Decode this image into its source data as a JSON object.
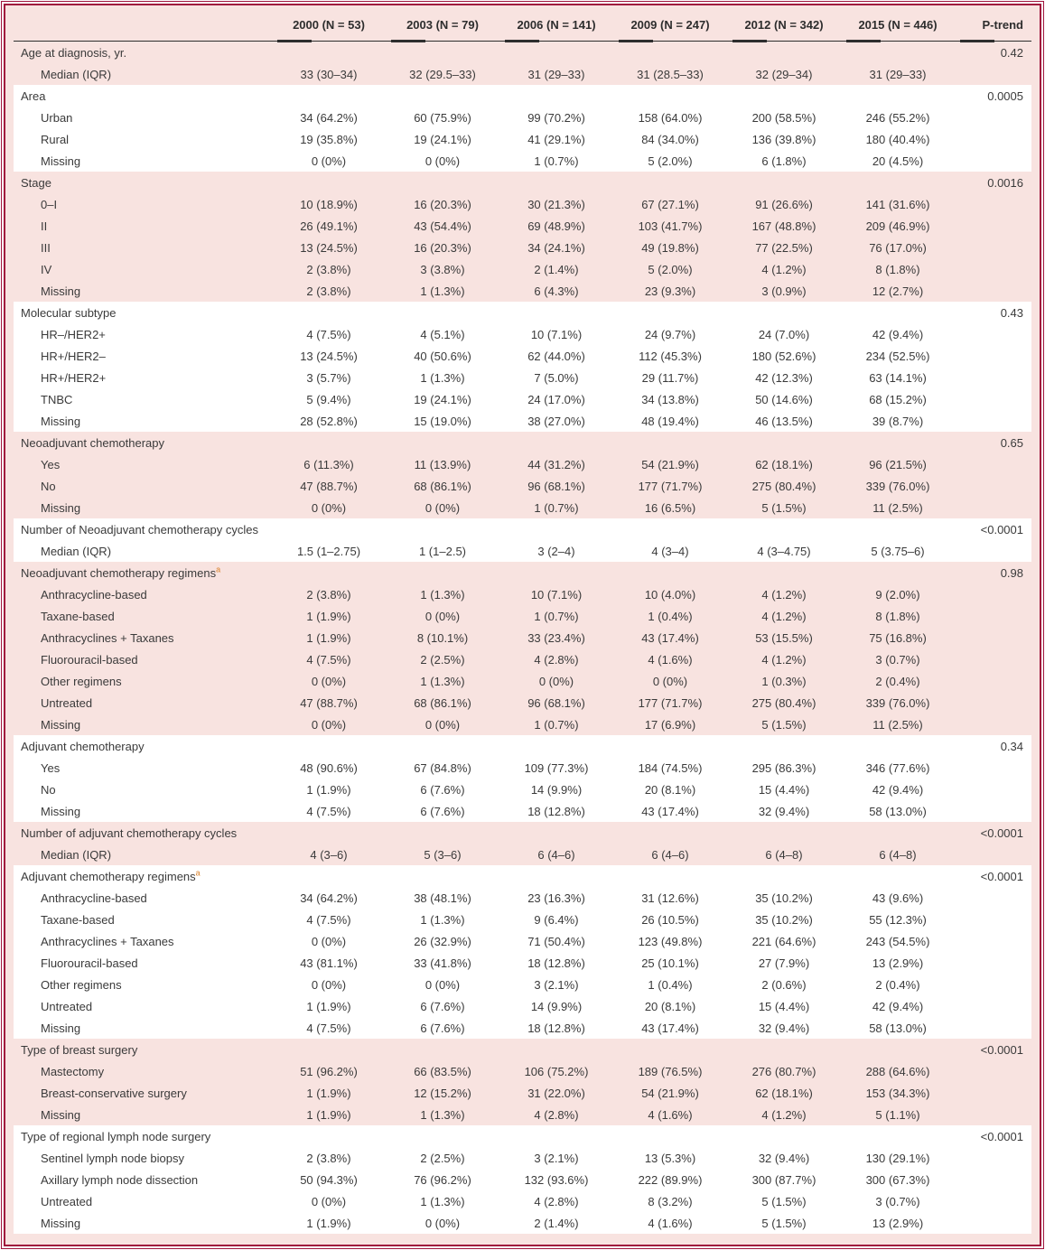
{
  "colors": {
    "maroon": "#a0143c",
    "pink": "#f8e3e0",
    "white": "#ffffff",
    "text": "#3a3a3a",
    "rule": "#2e2e2e",
    "footnote": "#d9822b"
  },
  "table": {
    "label_column": "",
    "columns": [
      "2000 (N = 53)",
      "2003 (N = 79)",
      "2006 (N = 141)",
      "2009 (N = 247)",
      "2012 (N = 342)",
      "2015 (N = 446)"
    ],
    "p_column": "P-trend",
    "sections": [
      {
        "label": "Age at diagnosis, yr.",
        "p": "0.42",
        "rows": [
          {
            "label": "Median (IQR)",
            "values": [
              "33 (30–34)",
              "32 (29.5–33)",
              "31 (29–33)",
              "31 (28.5–33)",
              "32 (29–34)",
              "31 (29–33)"
            ]
          }
        ]
      },
      {
        "label": "Area",
        "p": "0.0005",
        "rows": [
          {
            "label": "Urban",
            "values": [
              "34 (64.2%)",
              "60 (75.9%)",
              "99 (70.2%)",
              "158 (64.0%)",
              "200 (58.5%)",
              "246 (55.2%)"
            ]
          },
          {
            "label": "Rural",
            "values": [
              "19 (35.8%)",
              "19 (24.1%)",
              "41 (29.1%)",
              "84 (34.0%)",
              "136 (39.8%)",
              "180 (40.4%)"
            ]
          },
          {
            "label": "Missing",
            "values": [
              "0 (0%)",
              "0 (0%)",
              "1 (0.7%)",
              "5 (2.0%)",
              "6 (1.8%)",
              "20 (4.5%)"
            ]
          }
        ]
      },
      {
        "label": "Stage",
        "p": "0.0016",
        "rows": [
          {
            "label": "0–I",
            "values": [
              "10 (18.9%)",
              "16 (20.3%)",
              "30 (21.3%)",
              "67 (27.1%)",
              "91 (26.6%)",
              "141 (31.6%)"
            ]
          },
          {
            "label": "II",
            "values": [
              "26 (49.1%)",
              "43 (54.4%)",
              "69 (48.9%)",
              "103 (41.7%)",
              "167 (48.8%)",
              "209 (46.9%)"
            ]
          },
          {
            "label": "III",
            "values": [
              "13 (24.5%)",
              "16 (20.3%)",
              "34 (24.1%)",
              "49 (19.8%)",
              "77 (22.5%)",
              "76 (17.0%)"
            ]
          },
          {
            "label": "IV",
            "values": [
              "2 (3.8%)",
              "3 (3.8%)",
              "2 (1.4%)",
              "5 (2.0%)",
              "4 (1.2%)",
              "8 (1.8%)"
            ]
          },
          {
            "label": "Missing",
            "values": [
              "2 (3.8%)",
              "1 (1.3%)",
              "6 (4.3%)",
              "23 (9.3%)",
              "3 (0.9%)",
              "12 (2.7%)"
            ]
          }
        ]
      },
      {
        "label": "Molecular subtype",
        "p": "0.43",
        "rows": [
          {
            "label": "HR–/HER2+",
            "values": [
              "4 (7.5%)",
              "4 (5.1%)",
              "10 (7.1%)",
              "24 (9.7%)",
              "24 (7.0%)",
              "42 (9.4%)"
            ]
          },
          {
            "label": "HR+/HER2–",
            "values": [
              "13 (24.5%)",
              "40 (50.6%)",
              "62 (44.0%)",
              "112 (45.3%)",
              "180 (52.6%)",
              "234 (52.5%)"
            ]
          },
          {
            "label": "HR+/HER2+",
            "values": [
              "3 (5.7%)",
              "1 (1.3%)",
              "7 (5.0%)",
              "29 (11.7%)",
              "42 (12.3%)",
              "63 (14.1%)"
            ]
          },
          {
            "label": "TNBC",
            "values": [
              "5 (9.4%)",
              "19 (24.1%)",
              "24 (17.0%)",
              "34 (13.8%)",
              "50 (14.6%)",
              "68 (15.2%)"
            ]
          },
          {
            "label": "Missing",
            "values": [
              "28 (52.8%)",
              "15 (19.0%)",
              "38 (27.0%)",
              "48 (19.4%)",
              "46 (13.5%)",
              "39 (8.7%)"
            ]
          }
        ]
      },
      {
        "label": "Neoadjuvant chemotherapy",
        "p": "0.65",
        "rows": [
          {
            "label": "Yes",
            "values": [
              "6 (11.3%)",
              "11 (13.9%)",
              "44 (31.2%)",
              "54 (21.9%)",
              "62 (18.1%)",
              "96 (21.5%)"
            ]
          },
          {
            "label": "No",
            "values": [
              "47 (88.7%)",
              "68 (86.1%)",
              "96 (68.1%)",
              "177 (71.7%)",
              "275 (80.4%)",
              "339 (76.0%)"
            ]
          },
          {
            "label": "Missing",
            "values": [
              "0 (0%)",
              "0 (0%)",
              "1 (0.7%)",
              "16 (6.5%)",
              "5 (1.5%)",
              "11 (2.5%)"
            ]
          }
        ]
      },
      {
        "label": "Number of Neoadjuvant chemotherapy cycles",
        "p": "<0.0001",
        "rows": [
          {
            "label": "Median (IQR)",
            "values": [
              "1.5 (1–2.75)",
              "1 (1–2.5)",
              "3 (2–4)",
              "4 (3–4)",
              "4 (3–4.75)",
              "5 (3.75–6)"
            ]
          }
        ]
      },
      {
        "label": "Neoadjuvant chemotherapy regimens",
        "sup": "a",
        "p": "0.98",
        "rows": [
          {
            "label": "Anthracycline-based",
            "values": [
              "2 (3.8%)",
              "1 (1.3%)",
              "10 (7.1%)",
              "10 (4.0%)",
              "4 (1.2%)",
              "9 (2.0%)"
            ]
          },
          {
            "label": "Taxane-based",
            "values": [
              "1 (1.9%)",
              "0 (0%)",
              "1 (0.7%)",
              "1 (0.4%)",
              "4 (1.2%)",
              "8 (1.8%)"
            ]
          },
          {
            "label": "Anthracyclines + Taxanes",
            "values": [
              "1 (1.9%)",
              "8 (10.1%)",
              "33 (23.4%)",
              "43 (17.4%)",
              "53 (15.5%)",
              "75 (16.8%)"
            ]
          },
          {
            "label": "Fluorouracil-based",
            "values": [
              "4 (7.5%)",
              "2 (2.5%)",
              "4 (2.8%)",
              "4 (1.6%)",
              "4 (1.2%)",
              "3 (0.7%)"
            ]
          },
          {
            "label": "Other regimens",
            "values": [
              "0 (0%)",
              "1 (1.3%)",
              "0 (0%)",
              "0 (0%)",
              "1 (0.3%)",
              "2 (0.4%)"
            ]
          },
          {
            "label": "Untreated",
            "values": [
              "47 (88.7%)",
              "68 (86.1%)",
              "96 (68.1%)",
              "177 (71.7%)",
              "275 (80.4%)",
              "339 (76.0%)"
            ]
          },
          {
            "label": "Missing",
            "values": [
              "0 (0%)",
              "0 (0%)",
              "1 (0.7%)",
              "17 (6.9%)",
              "5 (1.5%)",
              "11 (2.5%)"
            ]
          }
        ]
      },
      {
        "label": "Adjuvant chemotherapy",
        "p": "0.34",
        "rows": [
          {
            "label": "Yes",
            "values": [
              "48 (90.6%)",
              "67 (84.8%)",
              "109 (77.3%)",
              "184 (74.5%)",
              "295 (86.3%)",
              "346 (77.6%)"
            ]
          },
          {
            "label": "No",
            "values": [
              "1 (1.9%)",
              "6 (7.6%)",
              "14 (9.9%)",
              "20 (8.1%)",
              "15 (4.4%)",
              "42 (9.4%)"
            ]
          },
          {
            "label": "Missing",
            "values": [
              "4 (7.5%)",
              "6 (7.6%)",
              "18 (12.8%)",
              "43 (17.4%)",
              "32 (9.4%)",
              "58 (13.0%)"
            ]
          }
        ]
      },
      {
        "label": "Number of adjuvant chemotherapy cycles",
        "p": "<0.0001",
        "rows": [
          {
            "label": "Median (IQR)",
            "values": [
              "4 (3–6)",
              "5 (3–6)",
              "6 (4–6)",
              "6 (4–6)",
              "6 (4–8)",
              "6 (4–8)"
            ]
          }
        ]
      },
      {
        "label": "Adjuvant chemotherapy regimens",
        "sup": "a",
        "p": "<0.0001",
        "rows": [
          {
            "label": "Anthracycline-based",
            "values": [
              "34 (64.2%)",
              "38 (48.1%)",
              "23 (16.3%)",
              "31 (12.6%)",
              "35 (10.2%)",
              "43 (9.6%)"
            ]
          },
          {
            "label": "Taxane-based",
            "values": [
              "4 (7.5%)",
              "1 (1.3%)",
              "9 (6.4%)",
              "26 (10.5%)",
              "35 (10.2%)",
              "55 (12.3%)"
            ]
          },
          {
            "label": "Anthracyclines + Taxanes",
            "values": [
              "0 (0%)",
              "26 (32.9%)",
              "71 (50.4%)",
              "123 (49.8%)",
              "221 (64.6%)",
              "243 (54.5%)"
            ]
          },
          {
            "label": "Fluorouracil-based",
            "values": [
              "43 (81.1%)",
              "33 (41.8%)",
              "18 (12.8%)",
              "25 (10.1%)",
              "27 (7.9%)",
              "13 (2.9%)"
            ]
          },
          {
            "label": "Other regimens",
            "values": [
              "0 (0%)",
              "0 (0%)",
              "3 (2.1%)",
              "1 (0.4%)",
              "2 (0.6%)",
              "2 (0.4%)"
            ]
          },
          {
            "label": "Untreated",
            "values": [
              "1 (1.9%)",
              "6 (7.6%)",
              "14 (9.9%)",
              "20 (8.1%)",
              "15 (4.4%)",
              "42 (9.4%)"
            ]
          },
          {
            "label": "Missing",
            "values": [
              "4 (7.5%)",
              "6 (7.6%)",
              "18 (12.8%)",
              "43 (17.4%)",
              "32 (9.4%)",
              "58 (13.0%)"
            ]
          }
        ]
      },
      {
        "label": "Type of breast surgery",
        "p": "<0.0001",
        "rows": [
          {
            "label": "Mastectomy",
            "values": [
              "51 (96.2%)",
              "66 (83.5%)",
              "106 (75.2%)",
              "189 (76.5%)",
              "276 (80.7%)",
              "288 (64.6%)"
            ]
          },
          {
            "label": "Breast-conservative surgery",
            "values": [
              "1 (1.9%)",
              "12 (15.2%)",
              "31 (22.0%)",
              "54 (21.9%)",
              "62 (18.1%)",
              "153 (34.3%)"
            ]
          },
          {
            "label": "Missing",
            "values": [
              "1 (1.9%)",
              "1 (1.3%)",
              "4 (2.8%)",
              "4 (1.6%)",
              "4 (1.2%)",
              "5 (1.1%)"
            ]
          }
        ]
      },
      {
        "label": "Type of regional lymph node surgery",
        "p": "<0.0001",
        "rows": [
          {
            "label": "Sentinel lymph node biopsy",
            "values": [
              "2 (3.8%)",
              "2 (2.5%)",
              "3 (2.1%)",
              "13 (5.3%)",
              "32 (9.4%)",
              "130 (29.1%)"
            ]
          },
          {
            "label": "Axillary lymph node dissection",
            "values": [
              "50 (94.3%)",
              "76 (96.2%)",
              "132 (93.6%)",
              "222 (89.9%)",
              "300 (87.7%)",
              "300 (67.3%)"
            ]
          },
          {
            "label": "Untreated",
            "values": [
              "0 (0%)",
              "1 (1.3%)",
              "4 (2.8%)",
              "8 (3.2%)",
              "5 (1.5%)",
              "3 (0.7%)"
            ]
          },
          {
            "label": "Missing",
            "values": [
              "1 (1.9%)",
              "0 (0%)",
              "2 (1.4%)",
              "4 (1.6%)",
              "5 (1.5%)",
              "13 (2.9%)"
            ]
          }
        ]
      }
    ]
  }
}
